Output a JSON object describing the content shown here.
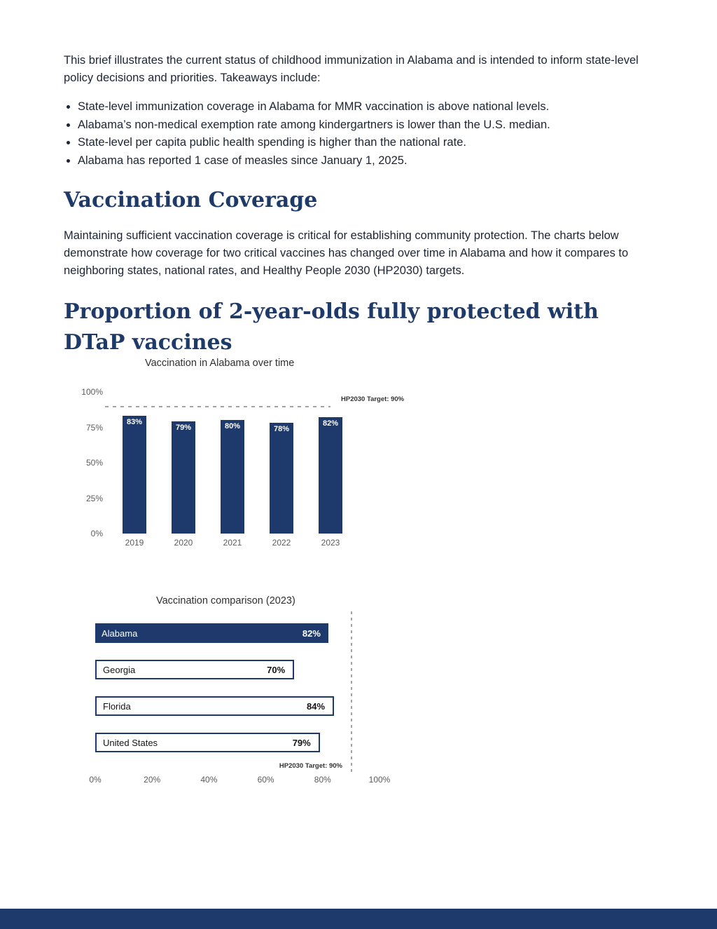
{
  "colors": {
    "navy_accent": "#1e3a6d",
    "heading_navy": "#1e3a68",
    "body_text": "#1d2433",
    "axis_text": "#5b5b5b",
    "target_line_gray": "#a3a3a3"
  },
  "intro": {
    "text": "This brief illustrates the current status of childhood immunization in Alabama and is intended to inform state-level policy decisions and priorities. Takeaways include:",
    "bullets": [
      "State-level immunization coverage in Alabama for MMR vaccination is above national levels.",
      "Alabama’s non-medical exemption rate among kindergartners is lower than the U.S. median.",
      "State-level per capita public health spending is higher than the national rate.",
      "Alabama has reported 1 case of measles since January 1, 2025."
    ]
  },
  "sections": {
    "coverage": {
      "title": "Vaccination Coverage",
      "body": "Maintaining sufficient vaccination coverage is critical for establishing community protection. The charts below demonstrate how coverage for two critical vaccines has changed over time in Alabama and how it compares to neighboring states, national rates, and Healthy People 2030 (HP2030) targets."
    },
    "dtap": {
      "title": "Proportion of 2-year-olds fully protected with DTaP vaccines"
    }
  },
  "chart_data": [
    {
      "type": "bar",
      "orientation": "vertical",
      "title": "Vaccination in Alabama over time",
      "categories": [
        "2019",
        "2020",
        "2021",
        "2022",
        "2023"
      ],
      "values": [
        83,
        79,
        80,
        78,
        82
      ],
      "value_labels": [
        "83%",
        "79%",
        "80%",
        "78%",
        "82%"
      ],
      "ylim": [
        0,
        100
      ],
      "yticks": [
        "100%",
        "75%",
        "50%",
        "25%",
        "0%"
      ],
      "target": {
        "value": 90,
        "label": "HP2030 Target: 90%"
      },
      "bar_color": "#1e3a6d",
      "grid": false,
      "legend": "none"
    },
    {
      "type": "bar",
      "orientation": "horizontal",
      "title": "Vaccination comparison (2023)",
      "categories": [
        "Alabama",
        "Georgia",
        "Florida",
        "United States"
      ],
      "values": [
        82,
        70,
        84,
        79
      ],
      "value_labels": [
        "82%",
        "70%",
        "84%",
        "79%"
      ],
      "xlim": [
        0,
        100
      ],
      "xticks": [
        "0%",
        "20%",
        "40%",
        "60%",
        "80%",
        "100%"
      ],
      "target": {
        "value": 90,
        "label": "HP2030 Target: 90%"
      },
      "highlight_category": "Alabama",
      "bar_color": "#1e3a6d",
      "grid": false,
      "legend": "none"
    }
  ]
}
